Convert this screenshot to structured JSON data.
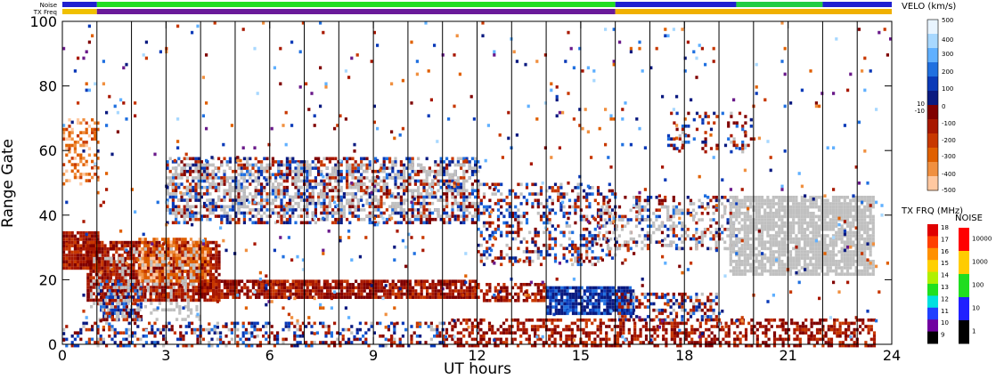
{
  "chart_data": {
    "type": "heatmap",
    "title": "",
    "xlabel": "UT hours",
    "ylabel": "Range Gate",
    "xlim": [
      0,
      24
    ],
    "ylim": [
      0,
      100
    ],
    "x_ticks": [
      0,
      3,
      6,
      9,
      12,
      15,
      18,
      21,
      24
    ],
    "y_ticks": [
      0,
      20,
      40,
      60,
      80,
      100
    ],
    "scan_boundaries_ut": [
      1.0,
      2.0,
      3.0,
      4.0,
      5.0,
      6.0,
      7.0,
      8.0,
      9.0,
      10.0,
      11.0,
      12.0,
      13.0,
      14.0,
      15.0,
      16.0,
      17.0,
      18.0,
      19.0,
      20.0,
      21.0,
      22.0,
      23.0
    ],
    "status_bars": [
      {
        "label": "Noise",
        "segments": [
          {
            "start": 0.0,
            "end": 1.0,
            "color": "#2020d0"
          },
          {
            "start": 1.0,
            "end": 16.0,
            "color": "#22dd22"
          },
          {
            "start": 16.0,
            "end": 19.5,
            "color": "#2020d0"
          },
          {
            "start": 19.5,
            "end": 22.0,
            "color": "#22cc44"
          },
          {
            "start": 22.0,
            "end": 24.0,
            "color": "#2020d0"
          }
        ]
      },
      {
        "label": "TX Freq",
        "segments": [
          {
            "start": 0.0,
            "end": 1.0,
            "color": "#f0c000"
          },
          {
            "start": 1.0,
            "end": 16.0,
            "color": "#6a1a9a"
          },
          {
            "start": 16.0,
            "end": 24.0,
            "color": "#f0b000"
          }
        ]
      }
    ],
    "velocity_scale": {
      "title": "VELO (km/s)",
      "labels": [
        "500",
        "400",
        "300",
        "200",
        "100",
        "10",
        "0",
        "-10",
        "-100",
        "-200",
        "-300",
        "-400",
        "-500"
      ],
      "colors": [
        "#e8f4ff",
        "#a8d8ff",
        "#60b0ff",
        "#2070e0",
        "#0a3ab8",
        "#0a1a80",
        "#800000",
        "#a81800",
        "#c83800",
        "#e06000",
        "#f09040",
        "#ffc8a0"
      ]
    },
    "frequency_scale": {
      "title": "TX FRQ (MHz)",
      "labels": [
        "18",
        "17",
        "16",
        "15",
        "14",
        "13",
        "12",
        "11",
        "10",
        "9"
      ],
      "colors": [
        "#e00000",
        "#ff4000",
        "#ff9000",
        "#ffd000",
        "#b0f000",
        "#20e020",
        "#00e0e0",
        "#2040ff",
        "#7000a0",
        "#000000"
      ]
    },
    "noise_scale": {
      "title": "NOISE",
      "labels": [
        "10000",
        "1000",
        "100",
        "10",
        "1"
      ],
      "colors": [
        "#ff0000",
        "#ffcc00",
        "#20dd20",
        "#2020ff",
        "#000000"
      ]
    },
    "ground_scatter_color": "#c0c0c0",
    "scatter_regions": [
      {
        "kind": "neg",
        "x0": 0.0,
        "x1": 1.0,
        "y0": 24,
        "y1": 35,
        "density": 0.95
      },
      {
        "kind": "neg",
        "x0": 0.7,
        "x1": 4.5,
        "y0": 14,
        "y1": 32,
        "density": 0.85
      },
      {
        "kind": "negfar",
        "x0": 2.2,
        "x1": 4.2,
        "y0": 20,
        "y1": 33,
        "density": 0.7
      },
      {
        "kind": "neg",
        "x0": 4.0,
        "x1": 12.0,
        "y0": 15,
        "y1": 20,
        "density": 0.85
      },
      {
        "kind": "neg",
        "x0": 12.0,
        "x1": 14.0,
        "y0": 14,
        "y1": 19,
        "density": 0.5
      },
      {
        "kind": "pos",
        "x0": 14.0,
        "x1": 16.5,
        "y0": 10,
        "y1": 18,
        "density": 0.85
      },
      {
        "kind": "mixed",
        "x0": 16.0,
        "x1": 19.0,
        "y0": 8,
        "y1": 16,
        "density": 0.5
      },
      {
        "kind": "mixed",
        "x0": 1.0,
        "x1": 2.3,
        "y0": 8,
        "y1": 20,
        "density": 0.7
      },
      {
        "kind": "mixed",
        "x0": 3.0,
        "x1": 12.0,
        "y0": 38,
        "y1": 58,
        "density": 0.5
      },
      {
        "kind": "mixed",
        "x0": 12.0,
        "x1": 16.0,
        "y0": 25,
        "y1": 50,
        "density": 0.35
      },
      {
        "kind": "mixed",
        "x0": 16.0,
        "x1": 19.5,
        "y0": 30,
        "y1": 46,
        "density": 0.25
      },
      {
        "kind": "neg",
        "x0": 11.0,
        "x1": 23.5,
        "y0": 0,
        "y1": 8,
        "density": 0.5
      },
      {
        "kind": "mixed",
        "x0": 0.0,
        "x1": 11.0,
        "y0": 0,
        "y1": 7,
        "density": 0.35
      },
      {
        "kind": "gs",
        "x0": 19.3,
        "x1": 23.5,
        "y0": 22,
        "y1": 46,
        "density": 0.8
      },
      {
        "kind": "gs",
        "x0": 15.5,
        "x1": 19.3,
        "y0": 30,
        "y1": 44,
        "density": 0.2
      },
      {
        "kind": "gs",
        "x0": 0.8,
        "x1": 4.0,
        "y0": 8,
        "y1": 30,
        "density": 0.2
      },
      {
        "kind": "gs",
        "x0": 3.0,
        "x1": 12.0,
        "y0": 40,
        "y1": 56,
        "density": 0.25
      },
      {
        "kind": "negfar",
        "x0": 0.0,
        "x1": 1.0,
        "y0": 50,
        "y1": 70,
        "density": 0.35
      },
      {
        "kind": "sparse",
        "x0": 0.0,
        "x1": 24.0,
        "y0": 0,
        "y1": 100,
        "density": 0.02
      },
      {
        "kind": "mixed",
        "x0": 17.5,
        "x1": 20.0,
        "y0": 60,
        "y1": 72,
        "density": 0.2
      }
    ]
  }
}
